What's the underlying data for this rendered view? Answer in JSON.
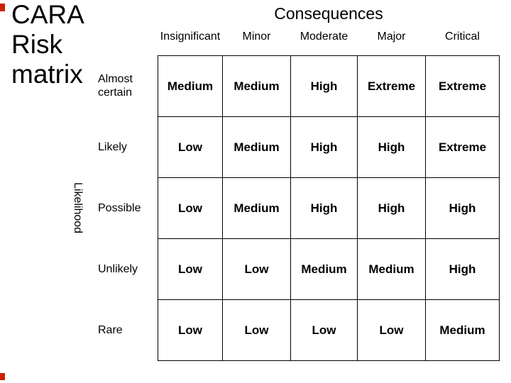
{
  "slide": {
    "title": "CARA\nRisk\nmatrix"
  },
  "matrix": {
    "consequences_header": "Consequences",
    "likelihood_header": "Likelihood",
    "consequence_levels": [
      "Insignificant",
      "Minor",
      "Moderate",
      "Major",
      "Critical"
    ],
    "likelihood_levels": [
      "Almost certain",
      "Likely",
      "Possible",
      "Unlikely",
      "Rare"
    ],
    "rows": [
      {
        "label": "Almost\ncertain",
        "cells": [
          "Medium",
          "Medium",
          "High",
          "Extreme",
          "Extreme"
        ]
      },
      {
        "label": "Likely",
        "cells": [
          "Low",
          "Medium",
          "High",
          "High",
          "Extreme"
        ]
      },
      {
        "label": "Possible",
        "cells": [
          "Low",
          "Medium",
          "High",
          "High",
          "High"
        ]
      },
      {
        "label": "Unlikely",
        "cells": [
          "Low",
          "Low",
          "Medium",
          "Medium",
          "High"
        ]
      },
      {
        "label": "Rare",
        "cells": [
          "Low",
          "Low",
          "Low",
          "Low",
          "Medium"
        ]
      }
    ]
  },
  "colors": {
    "background": "#ffffff",
    "text": "#000000",
    "grid_border": "#000000",
    "edge_marker": "#cc2200"
  }
}
